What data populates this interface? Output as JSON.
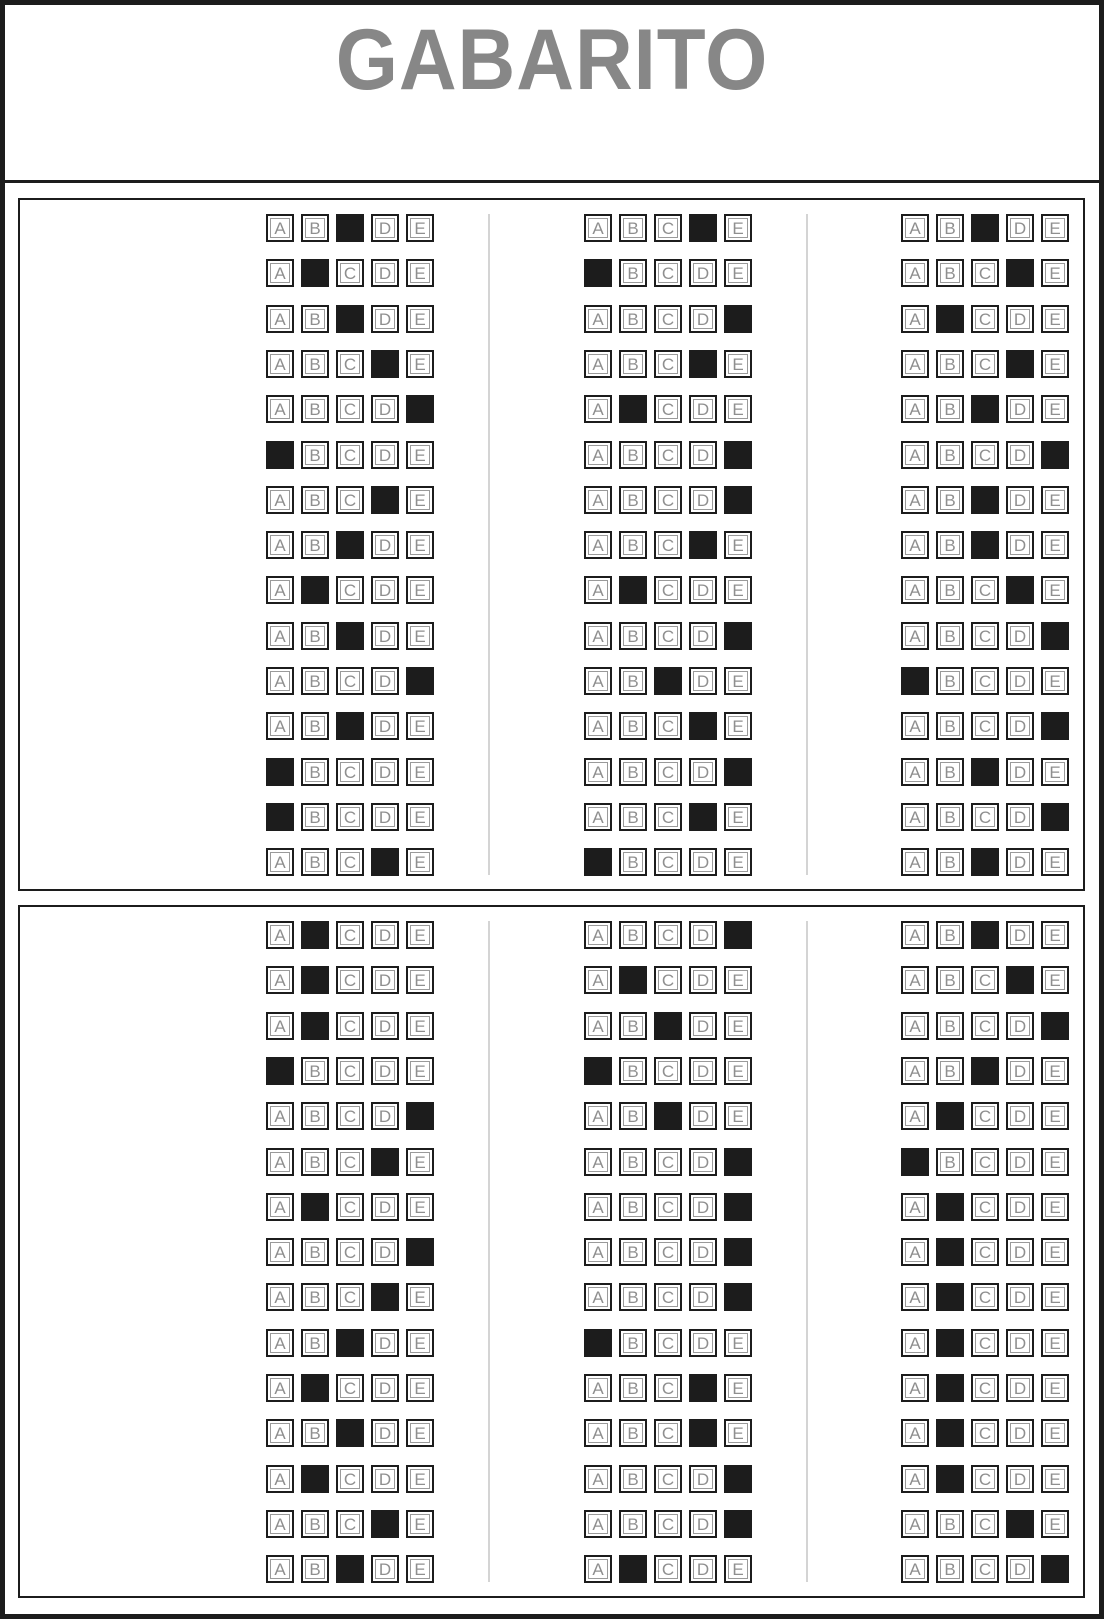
{
  "header": {
    "title": "GABARITO"
  },
  "options": [
    "A",
    "B",
    "C",
    "D",
    "E"
  ],
  "colors": {
    "filled": "#1c1c1c",
    "title": "#878787",
    "letter": "#8f8f8f"
  },
  "sections": [
    {
      "columns": [
        [
          "C",
          "B",
          "C",
          "D",
          "E",
          "A",
          "D",
          "C",
          "B",
          "C",
          "E",
          "C",
          "A",
          "A",
          "D"
        ],
        [
          "D",
          "A",
          "E",
          "D",
          "B",
          "E",
          "E",
          "D",
          "B",
          "E",
          "C",
          "D",
          "E",
          "D",
          "A"
        ],
        [
          "C",
          "D",
          "B",
          "D",
          "C",
          "E",
          "C",
          "C",
          "D",
          "E",
          "A",
          "E",
          "C",
          "E",
          "C"
        ]
      ]
    },
    {
      "columns": [
        [
          "B",
          "B",
          "B",
          "A",
          "E",
          "D",
          "B",
          "E",
          "D",
          "C",
          "B",
          "C",
          "B",
          "D",
          "C"
        ],
        [
          "E",
          "B",
          "C",
          "A",
          "C",
          "E",
          "E",
          "E",
          "E",
          "A",
          "D",
          "D",
          "E",
          "E",
          "B"
        ],
        [
          "C",
          "D",
          "E",
          "C",
          "B",
          "A",
          "B",
          "B",
          "B",
          "B",
          "B",
          "B",
          "B",
          "D",
          "E"
        ]
      ]
    }
  ]
}
